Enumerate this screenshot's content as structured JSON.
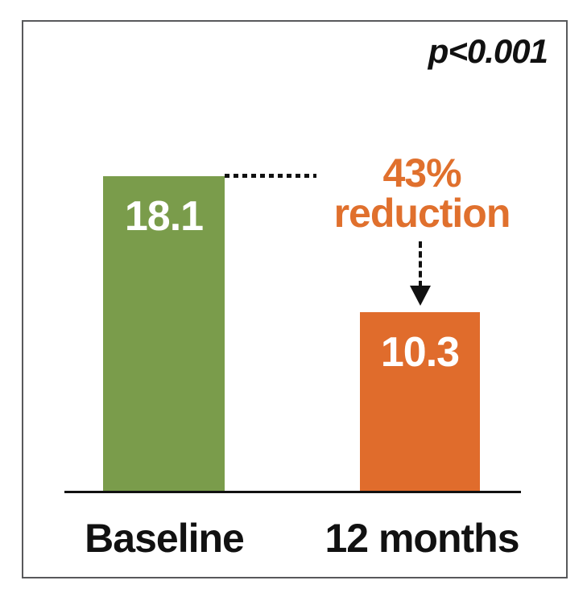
{
  "frame": {
    "border_color": "#58595b",
    "background_color": "#ffffff"
  },
  "p_value": "p<0.001",
  "annotation": {
    "line1": "43%",
    "line2": "reduction",
    "color": "#e0702d"
  },
  "chart_data": {
    "type": "bar",
    "categories": [
      "Baseline",
      "12 months"
    ],
    "values": [
      18.1,
      10.3
    ],
    "value_labels": [
      "18.1",
      "10.3"
    ],
    "bar_colors": [
      "#7a9c4b",
      "#e06c2c"
    ],
    "value_label_color": "#ffffff",
    "title": "",
    "xlabel": "",
    "ylabel": "",
    "ylim": [
      0,
      18.1
    ],
    "gridlines": false,
    "legend": false,
    "annotations": [
      {
        "text": "p<0.001",
        "position": "top-right",
        "style": "bold italic",
        "color": "#111111"
      },
      {
        "text": "43% reduction",
        "position": "right-of-baseline-bar",
        "color": "#e0702d"
      }
    ],
    "connectors": [
      {
        "type": "dotted-leader",
        "from": "top of Baseline bar",
        "direction": "right",
        "color": "#111111"
      },
      {
        "type": "dashed-arrow",
        "from": "below annotation",
        "to": "top of 12 months bar",
        "color": "#111111"
      }
    ]
  }
}
